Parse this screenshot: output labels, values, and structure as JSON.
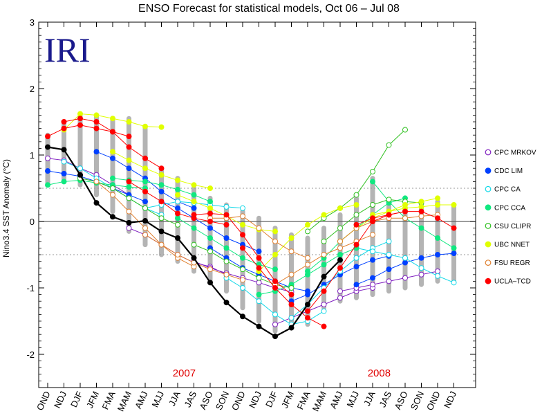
{
  "chart_data": {
    "type": "line",
    "title": "ENSO Forecast for statistical models, Oct 06 – Jul 08",
    "ylabel": "Nino3.4 SST Anomaly (°C)",
    "xlabel": "",
    "logo_text": "IRI",
    "categories": [
      "OND",
      "NDJ",
      "DJF",
      "JFM",
      "FMA",
      "MAM",
      "AMJ",
      "MJJ",
      "JJA",
      "JAS",
      "ASO",
      "SON",
      "OND",
      "NDJ",
      "DJF",
      "JFM",
      "FMA",
      "MAM",
      "AMJ",
      "MJJ",
      "JJA",
      "JAS",
      "ASO",
      "SON",
      "OND",
      "NDJ"
    ],
    "year_labels": [
      {
        "text": "2007",
        "category_index": 8.4
      },
      {
        "text": "2008",
        "category_index": 20.4
      }
    ],
    "ylim": [
      -2.5,
      3
    ],
    "yticks": [
      -2,
      -1,
      0,
      1,
      2,
      3
    ],
    "reference_lines": [
      0.5,
      -0.5
    ],
    "grid": false,
    "legend_position": "right",
    "colors": {
      "observed": "#000000",
      "plume": "#b4b4b4",
      "zero_line": "#606060",
      "year_label": "#e00000",
      "logo": "#1a1a8c"
    },
    "legend": [
      {
        "label": "CPC MRKOV",
        "color": "#8020c0",
        "marker": "open"
      },
      {
        "label": "CDC LIM",
        "color": "#0040ff",
        "marker": "filled"
      },
      {
        "label": "CPC CA",
        "color": "#10d8e8",
        "marker": "open"
      },
      {
        "label": "CPC CCA",
        "color": "#10e880",
        "marker": "filled"
      },
      {
        "label": "CSU CLIPR",
        "color": "#30c020",
        "marker": "open"
      },
      {
        "label": "UBC NNET",
        "color": "#e0ff00",
        "marker": "filled"
      },
      {
        "label": "FSU REGR",
        "color": "#e08030",
        "marker": "open"
      },
      {
        "label": "UCLA–TCD",
        "color": "#ff0000",
        "marker": "filled"
      }
    ],
    "observed": [
      1.12,
      1.08,
      0.7,
      0.28,
      0.07,
      -0.02,
      0.01,
      -0.15,
      -0.25,
      -0.55,
      -0.92,
      -1.22,
      -1.43,
      -1.58,
      -1.73,
      -1.6,
      -1.25,
      -0.83,
      -0.58
    ],
    "series": [
      {
        "model": "CPC MRKOV",
        "runs": [
          {
            "start": 0,
            "values": [
              0.95,
              0.92,
              0.8,
              0.7,
              0.55,
              0.4
            ]
          },
          {
            "start": 5,
            "values": [
              -0.1,
              -0.2,
              -0.35,
              -0.5,
              -0.62,
              -0.68,
              -0.8
            ]
          },
          {
            "start": 9,
            "values": [
              -0.6,
              -0.7,
              -0.78,
              -0.85,
              -0.92,
              -1.0,
              -1.06
            ]
          },
          {
            "start": 14,
            "values": [
              -1.55,
              -1.45,
              -1.35,
              -1.25,
              -1.15,
              -1.05,
              -1.0
            ]
          },
          {
            "start": 18,
            "values": [
              -1.05,
              -1.0,
              -0.95,
              -0.9,
              -0.85,
              -0.8,
              -0.75
            ]
          }
        ]
      },
      {
        "model": "CDC LIM",
        "runs": [
          {
            "start": 0,
            "values": [
              0.76,
              0.72,
              0.68,
              0.6,
              0.5,
              0.4,
              0.3
            ]
          },
          {
            "start": 3,
            "values": [
              1.05,
              0.95,
              0.8,
              0.65,
              0.45,
              0.3,
              0.2
            ]
          },
          {
            "start": 7,
            "values": [
              0.3,
              0.2,
              0.05,
              -0.1,
              -0.25,
              -0.35,
              -0.45
            ]
          },
          {
            "start": 10,
            "values": [
              -0.4,
              -0.55,
              -0.7,
              -0.8,
              -0.9,
              -1.0,
              -1.05
            ]
          },
          {
            "start": 15,
            "values": [
              -1.2,
              -1.1,
              -0.95,
              -0.8,
              -0.68,
              -0.58,
              -0.52
            ]
          },
          {
            "start": 19,
            "values": [
              -0.95,
              -0.85,
              -0.72,
              -0.62,
              -0.55,
              -0.5,
              -0.48
            ]
          }
        ]
      },
      {
        "model": "CPC CA",
        "runs": [
          {
            "start": 1,
            "values": [
              0.9,
              0.8,
              0.65,
              0.5,
              0.35,
              0.2,
              0.1
            ]
          },
          {
            "start": 6,
            "values": [
              0.2,
              0.25,
              0.3,
              0.28,
              0.25,
              0.22,
              0.2
            ]
          },
          {
            "start": 11,
            "values": [
              -0.85,
              -1.0,
              -1.2,
              -1.4,
              -1.55,
              -1.5,
              -1.35
            ]
          },
          {
            "start": 15,
            "values": [
              -1.45,
              -1.25,
              -1.0,
              -0.75,
              -0.55,
              -0.4,
              -0.3
            ]
          },
          {
            "start": 19,
            "values": [
              -0.4,
              -0.45,
              -0.5,
              -0.55,
              -0.7,
              -0.82,
              -0.92
            ]
          }
        ]
      },
      {
        "model": "CPC CCA",
        "runs": [
          {
            "start": 0,
            "values": [
              0.55,
              0.6,
              0.62,
              0.58,
              0.55,
              0.52,
              0.5
            ]
          },
          {
            "start": 4,
            "values": [
              0.65,
              0.62,
              0.6,
              0.55,
              0.48,
              0.4,
              0.3
            ]
          },
          {
            "start": 8,
            "values": [
              0.05,
              -0.1,
              -0.25,
              -0.4,
              -0.55,
              -0.65,
              -0.72
            ]
          },
          {
            "start": 13,
            "values": [
              -1.1,
              -1.05,
              -0.95,
              -0.8,
              -0.65,
              -0.5,
              -0.4
            ]
          },
          {
            "start": 16,
            "values": [
              -0.75,
              -0.55,
              -0.3,
              -0.1,
              0.1,
              0.28,
              0.35
            ]
          },
          {
            "start": 20,
            "values": [
              0.6,
              0.3,
              0.05,
              -0.1,
              -0.25,
              -0.4
            ]
          }
        ]
      },
      {
        "model": "CSU CLIPR",
        "runs": [
          {
            "start": 2,
            "values": [
              0.65,
              0.6,
              0.5,
              0.35,
              0.2,
              0.05,
              -0.05
            ]
          },
          {
            "start": 9,
            "values": [
              -0.35,
              -0.45,
              -0.6,
              -0.72,
              -0.85,
              -0.95,
              -1.0
            ]
          },
          {
            "start": 16,
            "values": [
              -0.15,
              0.05,
              0.2,
              0.4,
              0.75,
              1.15,
              1.38
            ]
          },
          {
            "start": 17,
            "values": [
              -0.3,
              -0.1,
              0.1,
              0.25,
              0.33,
              0.3,
              0.28
            ]
          }
        ]
      },
      {
        "model": "UBC NNET",
        "runs": [
          {
            "start": 1,
            "values": [
              1.38,
              1.62,
              1.6,
              1.55,
              1.5,
              1.43,
              1.42
            ]
          },
          {
            "start": 4,
            "values": [
              1.05,
              0.92,
              0.8,
              0.7,
              0.62,
              0.55,
              0.5
            ]
          },
          {
            "start": 8,
            "values": [
              0.4,
              0.3,
              0.2,
              0.08,
              -0.05,
              -0.12,
              -0.15
            ]
          },
          {
            "start": 13,
            "values": [
              -0.75,
              -0.5,
              -0.25,
              -0.05,
              0.1,
              0.2,
              0.25
            ]
          },
          {
            "start": 18,
            "values": [
              -0.3,
              -0.1,
              0.05,
              0.15,
              0.25,
              0.3,
              0.35
            ]
          },
          {
            "start": 20,
            "values": [
              0.1,
              0.15,
              0.2,
              0.22,
              0.25,
              0.25
            ]
          }
        ]
      },
      {
        "model": "FSU REGR",
        "runs": [
          {
            "start": 3,
            "values": [
              0.6,
              0.4,
              0.15,
              -0.1,
              -0.35,
              -0.55,
              -0.68
            ]
          },
          {
            "start": 6,
            "values": [
              -0.2,
              -0.35,
              -0.5,
              -0.62,
              -0.72,
              -0.8,
              -0.88
            ]
          },
          {
            "start": 10,
            "values": [
              0.05,
              0.05,
              0.08,
              -0.1,
              -0.3,
              -0.45,
              -0.55
            ]
          },
          {
            "start": 14,
            "values": [
              -0.95,
              -0.8,
              -0.65,
              -0.5,
              -0.4,
              -0.3,
              -0.2
            ]
          },
          {
            "start": 18,
            "values": [
              -0.3,
              -0.1,
              0.0,
              0.05,
              0.05,
              0.08,
              0.1
            ]
          }
        ]
      },
      {
        "model": "UCLA–TCD",
        "runs": [
          {
            "start": 0,
            "values": [
              1.28,
              1.4,
              1.45,
              1.4,
              1.35,
              1.28
            ]
          },
          {
            "start": 1,
            "values": [
              1.5,
              1.55,
              1.5,
              1.35,
              1.12,
              0.95,
              0.8
            ]
          },
          {
            "start": 5,
            "values": [
              0.6,
              0.45,
              0.3,
              0.12,
              0.05,
              0.0,
              -0.05
            ]
          },
          {
            "start": 9,
            "values": [
              0.1,
              0.12,
              0.1,
              -0.2,
              -0.55,
              -0.9,
              -1.1
            ]
          },
          {
            "start": 12,
            "values": [
              -0.4,
              -0.7,
              -1.0,
              -1.25,
              -1.45,
              -1.58
            ]
          },
          {
            "start": 16,
            "values": [
              -1.35,
              -1.05,
              -0.7,
              -0.35,
              0.0,
              0.1,
              0.15
            ]
          },
          {
            "start": 19,
            "values": [
              -0.05,
              0.05,
              0.1,
              0.15,
              0.15,
              0.05,
              -0.1
            ]
          }
        ]
      }
    ],
    "plume_range": [
      [
        0.55,
        1.3
      ],
      [
        0.6,
        1.5
      ],
      [
        0.55,
        1.62
      ],
      [
        0.4,
        1.6
      ],
      [
        0.15,
        1.55
      ],
      [
        -0.15,
        1.55
      ],
      [
        -0.35,
        1.4
      ],
      [
        -0.5,
        0.8
      ],
      [
        -0.6,
        0.65
      ],
      [
        -0.75,
        0.5
      ],
      [
        -0.9,
        0.35
      ],
      [
        -1.05,
        0.25
      ],
      [
        -1.3,
        0.15
      ],
      [
        -1.5,
        0.05
      ],
      [
        -1.65,
        -0.1
      ],
      [
        -1.6,
        -0.2
      ],
      [
        -1.55,
        -0.25
      ],
      [
        -1.3,
        -0.1
      ],
      [
        -1.2,
        0.1
      ],
      [
        -1.15,
        0.35
      ],
      [
        -1.1,
        0.65
      ],
      [
        -1.05,
        0.3
      ],
      [
        -1.0,
        0.3
      ],
      [
        -0.95,
        0.3
      ],
      [
        -0.9,
        0.3
      ],
      [
        -0.9,
        0.25
      ]
    ]
  }
}
